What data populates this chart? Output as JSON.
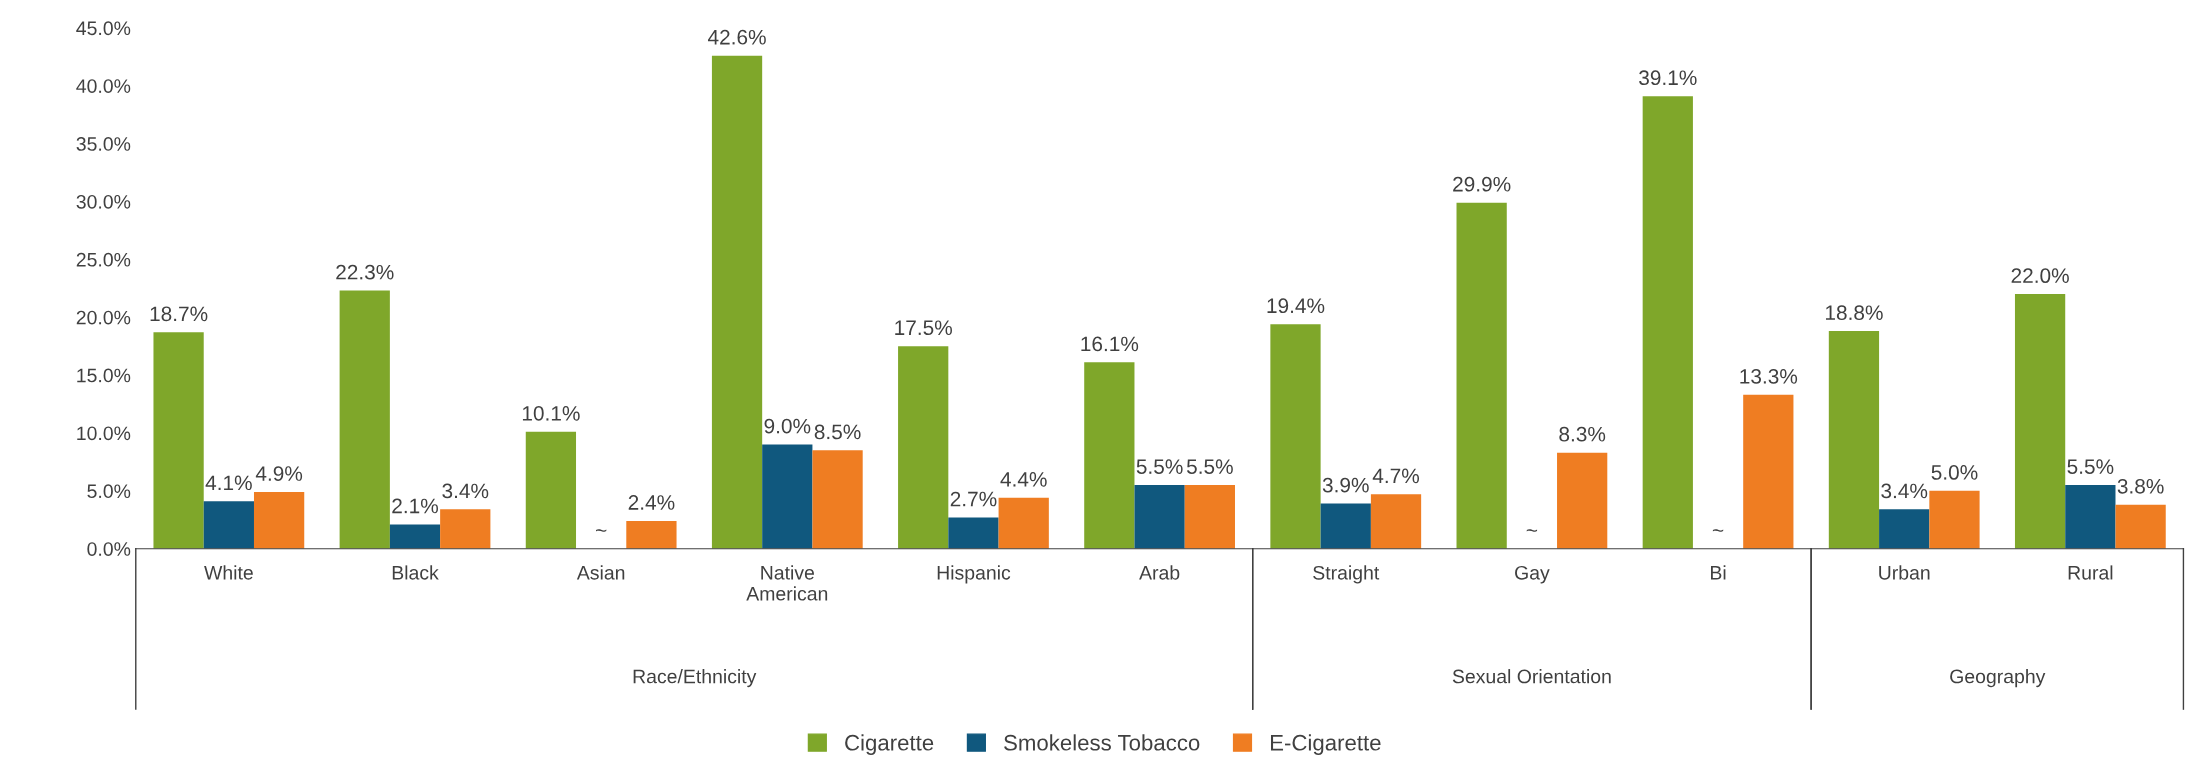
{
  "chart_data": {
    "type": "bar",
    "categories": [
      "White",
      "Black",
      "Asian",
      "Native\nAmerican",
      "Hispanic",
      "Arab",
      "Straight",
      "Gay",
      "Bi",
      "Urban",
      "Rural"
    ],
    "series": [
      {
        "name": "Cigarette",
        "color": "#7fa72a",
        "values": [
          18.7,
          22.3,
          10.1,
          42.6,
          17.5,
          16.1,
          19.4,
          29.9,
          39.1,
          18.8,
          22.0
        ],
        "value_labels": [
          "18.7%",
          "22.3%",
          "10.1%",
          "42.6%",
          "17.5%",
          "16.1%",
          "19.4%",
          "29.9%",
          "39.1%",
          "18.8%",
          "22.0%"
        ]
      },
      {
        "name": "Smokeless Tobacco",
        "color": "#10587e",
        "values": [
          4.1,
          2.1,
          null,
          9.0,
          2.7,
          5.5,
          3.9,
          null,
          null,
          3.4,
          5.5
        ],
        "value_labels": [
          "4.1%",
          "2.1%",
          "~",
          "9.0%",
          "2.7%",
          "5.5%",
          "3.9%",
          "~",
          "~",
          "3.4%",
          "5.5%"
        ]
      },
      {
        "name": "E-Cigarette",
        "color": "#ef7d22",
        "values": [
          4.9,
          3.4,
          2.4,
          8.5,
          4.4,
          5.5,
          4.7,
          8.3,
          13.3,
          5.0,
          3.8
        ],
        "value_labels": [
          "4.9%",
          "3.4%",
          "2.4%",
          "8.5%",
          "4.4%",
          "5.5%",
          "4.7%",
          "8.3%",
          "13.3%",
          "5.0%",
          "3.8%"
        ]
      }
    ],
    "ylim": [
      0,
      45
    ],
    "yticks": [
      {
        "value": 0,
        "label": "0.0%"
      },
      {
        "value": 5,
        "label": "5.0%"
      },
      {
        "value": 10,
        "label": "10.0%"
      },
      {
        "value": 15,
        "label": "15.0%"
      },
      {
        "value": 20,
        "label": "20.0%"
      },
      {
        "value": 25,
        "label": "25.0%"
      },
      {
        "value": 30,
        "label": "30.0%"
      },
      {
        "value": 35,
        "label": "35.0%"
      },
      {
        "value": 40,
        "label": "40.0%"
      },
      {
        "value": 45,
        "label": "45.0%"
      }
    ],
    "annotations": [
      "Race/Ethnicity",
      "Sexual Orientation",
      "Geography"
    ],
    "grid": false,
    "legend": "bottom"
  }
}
